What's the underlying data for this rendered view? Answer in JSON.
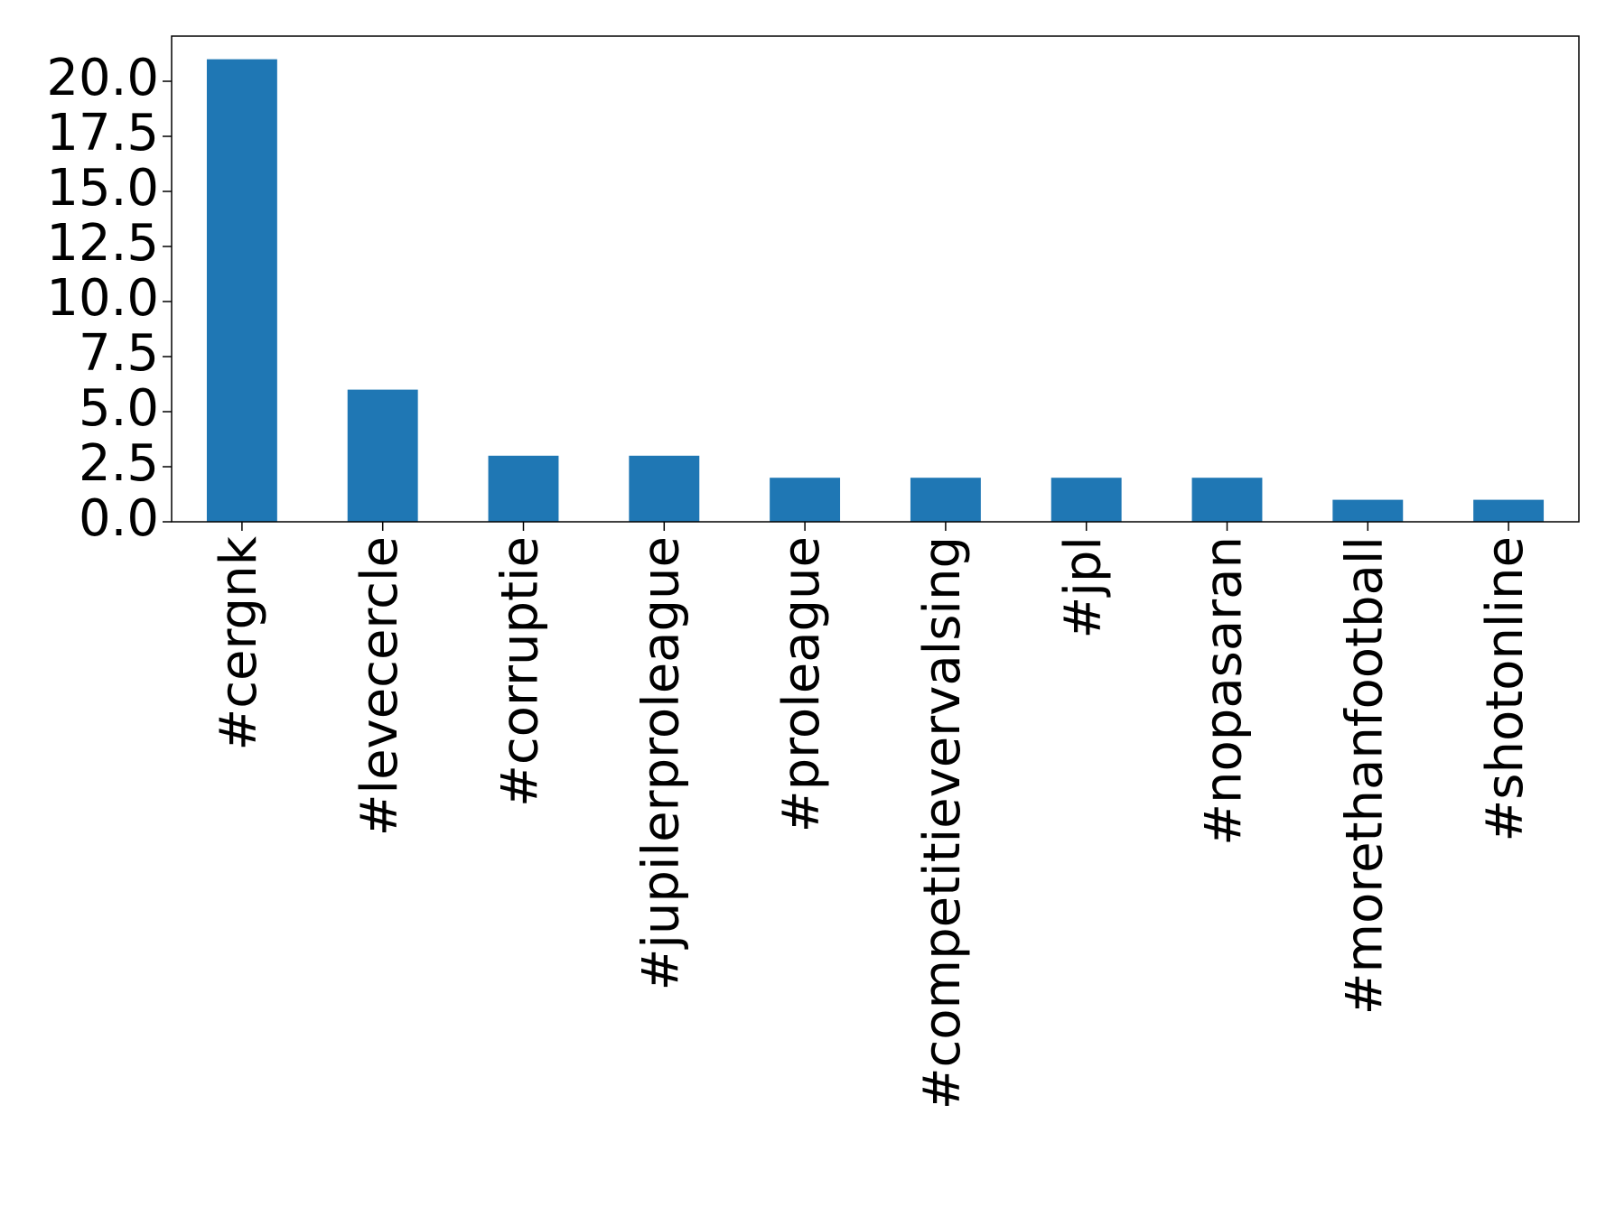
{
  "chart_data": {
    "type": "bar",
    "categories": [
      "#cergnk",
      "#levecercle",
      "#corruptie",
      "#jupilerproleague",
      "#proleague",
      "#competitievervalsing",
      "#jpl",
      "#nopasaran",
      "#morethanfootball",
      "#shotonline"
    ],
    "values": [
      21,
      6,
      3,
      3,
      2,
      2,
      2,
      2,
      1,
      1
    ],
    "color": "#1f77b4",
    "ylim": [
      0,
      22.05
    ],
    "yticks": [
      {
        "value": 0,
        "label": "0.0"
      },
      2.5,
      {
        "value": 5,
        "label": "5.0"
      },
      7.5,
      {
        "value": 10,
        "label": "10.0"
      },
      12.5,
      {
        "value": 15,
        "label": "15.0"
      },
      17.5,
      {
        "value": 20,
        "label": "20.0"
      }
    ],
    "grid": false
  }
}
